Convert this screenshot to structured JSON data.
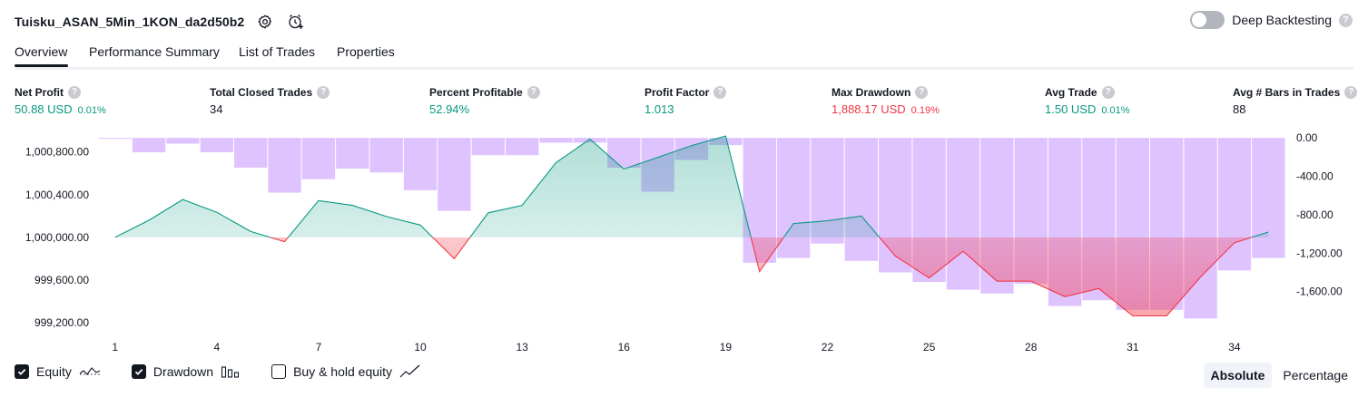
{
  "header": {
    "strategy_name": "Tuisku_ASAN_5Min_1KON_da2d50b2",
    "deep_backtesting_label": "Deep Backtesting",
    "help_glyph": "?"
  },
  "tabs": [
    {
      "label": "Overview",
      "active": true
    },
    {
      "label": "Performance Summary",
      "active": false
    },
    {
      "label": "List of Trades",
      "active": false
    },
    {
      "label": "Properties",
      "active": false
    }
  ],
  "stats": [
    {
      "label": "Net Profit",
      "value": "50.88 USD",
      "pct": "0.01%",
      "color": "green"
    },
    {
      "label": "Total Closed Trades",
      "value": "34",
      "pct": "",
      "color": "dark"
    },
    {
      "label": "Percent Profitable",
      "value": "52.94%",
      "pct": "",
      "color": "green"
    },
    {
      "label": "Profit Factor",
      "value": "1.013",
      "pct": "",
      "color": "green"
    },
    {
      "label": "Max Drawdown",
      "value": "1,888.17 USD",
      "pct": "0.19%",
      "color": "red"
    },
    {
      "label": "Avg Trade",
      "value": "1.50 USD",
      "pct": "0.01%",
      "color": "green"
    },
    {
      "label": "Avg # Bars in Trades",
      "value": "88",
      "pct": "",
      "color": "dark"
    }
  ],
  "chart_data": {
    "type": "line",
    "x": [
      1,
      2,
      3,
      4,
      5,
      6,
      7,
      8,
      9,
      10,
      11,
      12,
      13,
      14,
      15,
      16,
      17,
      18,
      19,
      20,
      21,
      22,
      23,
      24,
      25,
      26,
      27,
      28,
      29,
      30,
      31,
      32,
      33,
      34,
      35
    ],
    "x_tick_labels": [
      "1",
      "4",
      "7",
      "10",
      "13",
      "16",
      "19",
      "22",
      "25",
      "28",
      "31",
      "34"
    ],
    "y_left_tick_labels": [
      "1,000,800.00",
      "1,000,400.00",
      "1,000,000.00",
      "999,600.00",
      "999,200.00"
    ],
    "y_right_tick_labels": [
      "0.00",
      "-400.00",
      "-800.00",
      "-1,200.00",
      "-1,600.00"
    ],
    "y_left_range": [
      999150,
      1000950
    ],
    "y_right_range": [
      -1980,
      20
    ],
    "baseline": 1000000,
    "series": [
      {
        "values": [
          1000000,
          1000160,
          1000355,
          1000235,
          1000055,
          999960,
          1000345,
          1000300,
          1000195,
          1000115,
          999800,
          1000230,
          1000300,
          1000700,
          1000920,
          1000640,
          1000750,
          1000860,
          1000950,
          999680,
          1000130,
          1000155,
          1000200,
          999825,
          999620,
          999870,
          999590,
          999590,
          999445,
          999520,
          999265,
          999265,
          999630,
          999950,
          1000050
        ]
      },
      {
        "values": [
          -10,
          -150,
          -60,
          -150,
          -310,
          -570,
          -430,
          -320,
          -360,
          -545,
          -760,
          -180,
          -180,
          -50,
          -50,
          -310,
          -560,
          -230,
          -75,
          -1300,
          -1250,
          -1100,
          -1280,
          -1400,
          -1500,
          -1580,
          -1620,
          -1520,
          -1750,
          -1690,
          -1790,
          -1790,
          -1880,
          -1380,
          -1250
        ]
      }
    ],
    "color_profit": "#089981",
    "color_loss": "#f23645",
    "color_drawdown": "#d9b8ff"
  },
  "legend": [
    {
      "label": "Equity",
      "checked": true
    },
    {
      "label": "Drawdown",
      "checked": true
    },
    {
      "label": "Buy & hold equity",
      "checked": false
    }
  ],
  "modes": [
    {
      "label": "Absolute",
      "active": true
    },
    {
      "label": "Percentage",
      "active": false
    }
  ]
}
